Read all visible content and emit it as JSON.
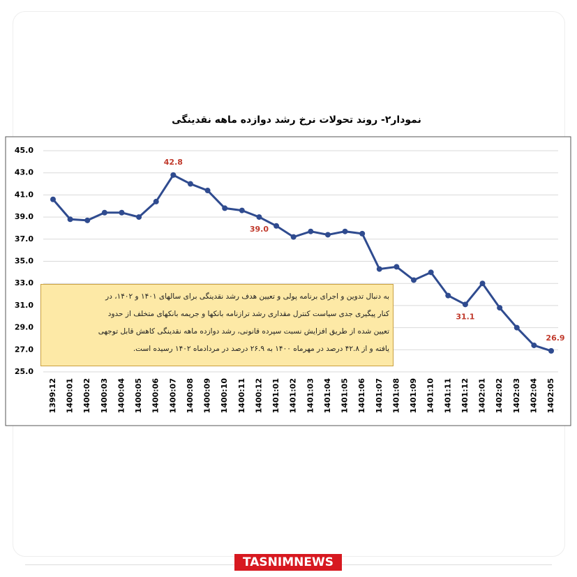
{
  "chart_data": {
    "type": "line",
    "title": "نمودار۲- روند تحولات نرخ رشد دوازده ماهه نقدینگی",
    "categories": [
      "1399:12",
      "1400:01",
      "1400:02",
      "1400:03",
      "1400:04",
      "1400:05",
      "1400:06",
      "1400:07",
      "1400:08",
      "1400:09",
      "1400:10",
      "1400:11",
      "1400:12",
      "1401:01",
      "1401:02",
      "1401:03",
      "1401:04",
      "1401:05",
      "1401:06",
      "1401:07",
      "1401:08",
      "1401:09",
      "1401:10",
      "1401:11",
      "1401:12",
      "1402:01",
      "1402:02",
      "1402:03",
      "1402:04",
      "1402:05"
    ],
    "values": [
      40.6,
      38.8,
      38.7,
      39.4,
      39.4,
      39.0,
      40.4,
      42.8,
      42.0,
      41.4,
      39.8,
      39.6,
      39.0,
      38.2,
      37.2,
      37.7,
      37.4,
      37.7,
      37.5,
      34.3,
      34.5,
      33.3,
      34.0,
      31.9,
      31.1,
      33.0,
      30.8,
      29.0,
      27.4,
      26.9
    ],
    "value_labels": [
      null,
      null,
      null,
      null,
      null,
      null,
      null,
      "42.8",
      null,
      null,
      null,
      null,
      "39.0",
      null,
      null,
      null,
      null,
      null,
      null,
      null,
      null,
      null,
      null,
      null,
      "31.1",
      null,
      null,
      null,
      null,
      "26.9"
    ],
    "color": "#2f4b8f",
    "ylim": [
      25,
      45
    ],
    "yticks": [
      {
        "value": 25,
        "label": "25.0"
      },
      {
        "value": 27,
        "label": "27.0"
      },
      {
        "value": 29,
        "label": "29.0"
      },
      {
        "value": 31,
        "label": "31.0"
      },
      {
        "value": 33,
        "label": "33.0"
      },
      {
        "value": 35,
        "label": "35.0"
      },
      {
        "value": 37,
        "label": "37.0"
      },
      {
        "value": 39,
        "label": "39.0"
      },
      {
        "value": 41,
        "label": "41.0"
      },
      {
        "value": 43,
        "label": "43.0"
      },
      {
        "value": 45,
        "label": "45.0"
      }
    ],
    "grid": true,
    "annotation": [
      "به دنبال تدوین و اجرای برنامه پولی و تعیین هدف رشد نقدینگی برای سالهای ۱۴۰۱ و ۱۴۰۲، در",
      "کنار پیگیری جدی سیاست کنترل مقداری رشد ترازنامه بانکها و جریمه بانکهای متخلف از حدود",
      "تعیین شده از طریق افزایش نسبت سپرده قانونی، رشد دوازده ماهه نقدینگی کاهش قابل توجهی",
      "یافته و از ۴۲.۸ درصد در مهرماه ۱۴۰۰ به ۲۶.۹ درصد در مردادماه ۱۴۰۲ رسیده است."
    ]
  },
  "footer": {
    "logo": "TASNIMNEWS"
  }
}
